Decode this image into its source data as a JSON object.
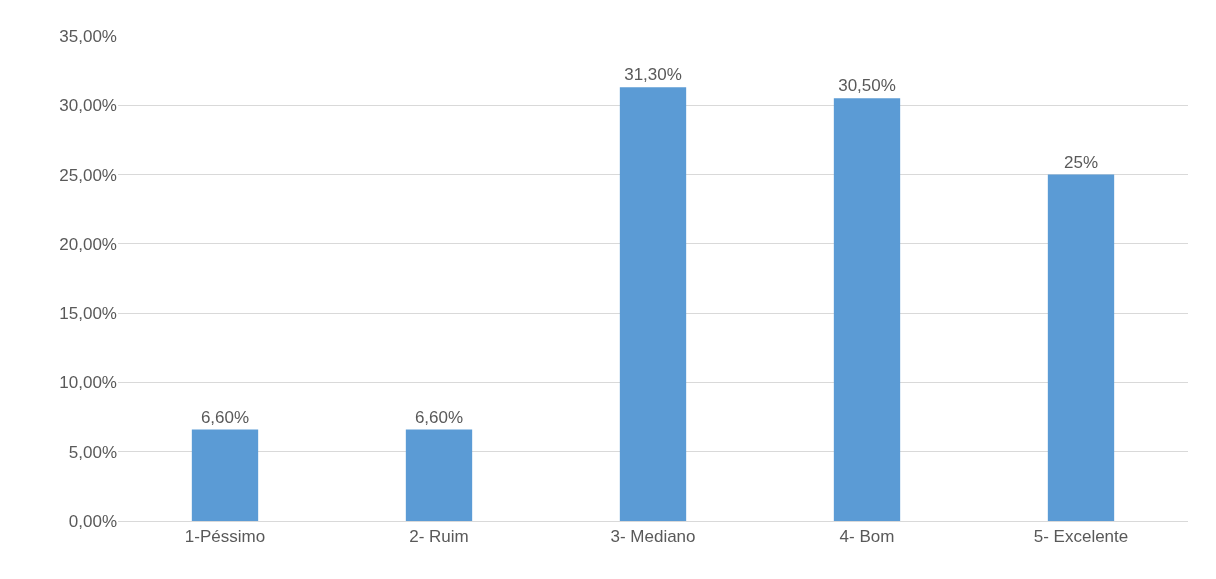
{
  "chart_data": {
    "type": "bar",
    "categories": [
      "1-Péssimo",
      "2- Ruim",
      "3- Mediano",
      "4- Bom",
      "5- Excelente"
    ],
    "values": [
      6.6,
      6.6,
      31.3,
      30.5,
      25
    ],
    "value_labels": [
      "6,60%",
      "6,60%",
      "31,30%",
      "30,50%",
      "25%"
    ],
    "color": "#5b9bd5",
    "ylim": [
      0,
      35
    ],
    "yticks": [
      {
        "value": 0,
        "label": "0,00%"
      },
      {
        "value": 5,
        "label": "5,00%"
      },
      {
        "value": 10,
        "label": "10,00%"
      },
      {
        "value": 15,
        "label": "15,00%"
      },
      {
        "value": 20,
        "label": "20,00%"
      },
      {
        "value": 25,
        "label": "25,00%"
      },
      {
        "value": 30,
        "label": "30,00%"
      },
      {
        "value": 35,
        "label": "35,00%"
      }
    ],
    "grid": "y",
    "legend": false
  }
}
